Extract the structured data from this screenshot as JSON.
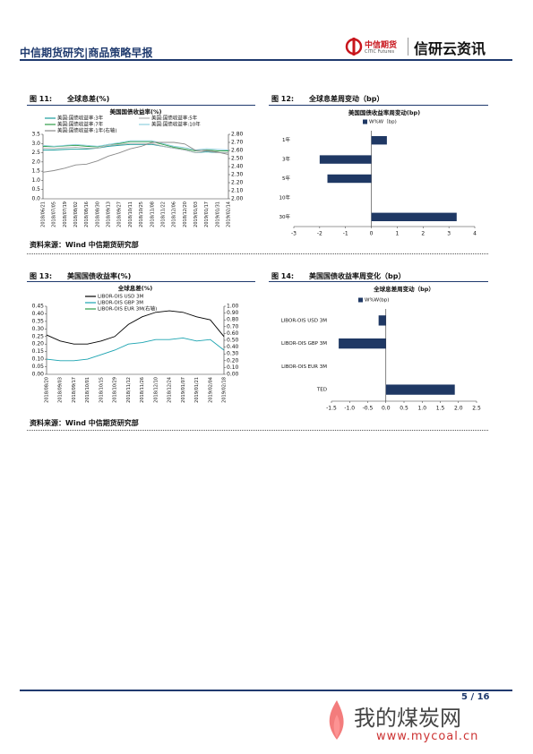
{
  "header": {
    "title": "中信期货研究|商品策略早报",
    "logo_cn": "中信期货",
    "logo_en": "CITIC Futures",
    "brand": "信研云资讯"
  },
  "chart_data": [
    {
      "type": "line",
      "figure_label": "图 11:",
      "caption": "全球息差(%)",
      "title": "美国国债收益率(%)",
      "source": "资料来源：Wind  中信期货研究部",
      "categories": [
        "2018/06/21",
        "2018/07/05",
        "2018/07/19",
        "2018/08/02",
        "2018/08/16",
        "2018/08/30",
        "2018/09/13",
        "2018/09/27",
        "2018/10/11",
        "2018/10/25",
        "2018/11/08",
        "2018/11/22",
        "2018/12/06",
        "2018/12/20",
        "2019/01/03",
        "2019/01/17",
        "2019/01/31",
        "2019/02/14"
      ],
      "series": [
        {
          "name": "美国:国债收益率:3年",
          "color": "#1a9c9c",
          "values": [
            2.65,
            2.65,
            2.68,
            2.7,
            2.7,
            2.75,
            2.85,
            2.9,
            2.95,
            2.95,
            2.95,
            2.85,
            2.75,
            2.65,
            2.5,
            2.55,
            2.5,
            2.5
          ]
        },
        {
          "name": "美国:国债收益率:5年",
          "color": "#b0b0b0",
          "values": [
            2.75,
            2.73,
            2.77,
            2.8,
            2.75,
            2.75,
            2.9,
            2.95,
            3.0,
            3.0,
            3.0,
            2.85,
            2.75,
            2.65,
            2.5,
            2.6,
            2.5,
            2.5
          ]
        },
        {
          "name": "美国:国债收益率:7年",
          "color": "#2e9d48",
          "values": [
            2.85,
            2.83,
            2.87,
            2.9,
            2.85,
            2.82,
            2.95,
            3.0,
            3.1,
            3.1,
            3.1,
            2.95,
            2.8,
            2.7,
            2.6,
            2.65,
            2.6,
            2.6
          ]
        },
        {
          "name": "美国:国债收益率:10年",
          "color": "#8fd0e0",
          "values": [
            2.9,
            2.85,
            2.9,
            2.95,
            2.9,
            2.85,
            2.95,
            3.05,
            3.15,
            3.15,
            3.15,
            3.0,
            2.85,
            2.78,
            2.65,
            2.72,
            2.68,
            2.65
          ]
        },
        {
          "name": "美国:国债收益率:1年(右轴)",
          "color": "#8a8a8a",
          "axis": "y2",
          "values": [
            2.33,
            2.35,
            2.38,
            2.42,
            2.43,
            2.47,
            2.53,
            2.57,
            2.62,
            2.65,
            2.7,
            2.7,
            2.7,
            2.68,
            2.6,
            2.6,
            2.58,
            2.55
          ]
        }
      ],
      "ylim": [
        0,
        3.5
      ],
      "yticks": [
        {
          "value": 0,
          "label": "0.0"
        },
        0.5,
        {
          "value": 1,
          "label": "1.0"
        },
        1.5,
        {
          "value": 2,
          "label": "2.0"
        },
        2.5,
        {
          "value": 3,
          "label": "3.0"
        },
        3.5
      ],
      "y2lim": [
        2.0,
        2.8
      ],
      "y2ticks": [
        {
          "value": 2,
          "label": "2.00"
        },
        {
          "value": 2.1,
          "label": "2.10"
        },
        {
          "value": 2.2,
          "label": "2.20"
        },
        {
          "value": 2.3,
          "label": "2.30"
        },
        {
          "value": 2.4,
          "label": "2.40"
        },
        {
          "value": 2.5,
          "label": "2.50"
        },
        {
          "value": 2.6,
          "label": "2.60"
        },
        {
          "value": 2.7,
          "label": "2.70"
        },
        {
          "value": 2.8,
          "label": "2.80"
        }
      ]
    },
    {
      "type": "barh",
      "figure_label": "图 12:",
      "caption": "全球息差周变动（bp）",
      "title": "美国国债收益率周变动(bp)",
      "categories": [
        "1年",
        "3年",
        "5年",
        "10年",
        "30年"
      ],
      "series": [
        {
          "name": "W%W（bp)",
          "color": "#1f3864",
          "values": [
            0.6,
            -2.0,
            -1.7,
            0,
            3.3
          ]
        }
      ],
      "xlim": [
        -3,
        4
      ],
      "xticks": [
        -3,
        -2,
        -1,
        0,
        1,
        2,
        3,
        4
      ]
    },
    {
      "type": "line",
      "figure_label": "图 13:",
      "caption": "美国国债收益率(%)",
      "title": "全球息差(%)",
      "source": "资料来源：Wind  中信期货研究部",
      "categories": [
        "2018/08/20",
        "2018/09/03",
        "2018/09/17",
        "2018/10/01",
        "2018/10/15",
        "2018/10/29",
        "2018/11/12",
        "2018/11/26",
        "2018/12/10",
        "2018/12/24",
        "2019/01/07",
        "2019/01/21",
        "2019/02/04",
        "2019/02/18"
      ],
      "series": [
        {
          "name": "LIBOR-OIS USD 3M",
          "color": "#000000",
          "values": [
            0.26,
            0.22,
            0.2,
            0.2,
            0.22,
            0.25,
            0.33,
            0.38,
            0.41,
            0.42,
            0.41,
            0.38,
            0.36,
            0.25
          ]
        },
        {
          "name": "LIBOR-OIS GBP 3M",
          "color": "#1aa3b0",
          "values": [
            0.1,
            0.09,
            0.09,
            0.1,
            0.13,
            0.16,
            0.2,
            0.21,
            0.23,
            0.23,
            0.24,
            0.22,
            0.23,
            0.16
          ]
        },
        {
          "name": "LIBOR-OIS EUR 3M(右轴)",
          "color": "#2e9d48",
          "axis": "y2",
          "values": [
            null,
            null,
            null,
            null,
            null,
            null,
            null,
            null,
            null,
            null,
            null,
            null,
            null,
            null
          ]
        }
      ],
      "ylim": [
        0,
        0.45
      ],
      "yticks": [
        {
          "value": 0,
          "label": "0.00"
        },
        {
          "value": 0.05,
          "label": "0.05"
        },
        {
          "value": 0.1,
          "label": "0.10"
        },
        {
          "value": 0.15,
          "label": "0.15"
        },
        {
          "value": 0.2,
          "label": "0.20"
        },
        {
          "value": 0.25,
          "label": "0.25"
        },
        {
          "value": 0.3,
          "label": "0.30"
        },
        {
          "value": 0.35,
          "label": "0.35"
        },
        {
          "value": 0.4,
          "label": "0.40"
        },
        {
          "value": 0.45,
          "label": "0.45"
        }
      ],
      "y2lim": [
        0,
        1
      ],
      "y2ticks": [
        {
          "value": 0,
          "label": "0.00"
        },
        {
          "value": 0.1,
          "label": "0.10"
        },
        {
          "value": 0.2,
          "label": "0.20"
        },
        {
          "value": 0.3,
          "label": "0.30"
        },
        {
          "value": 0.4,
          "label": "0.40"
        },
        {
          "value": 0.5,
          "label": "0.50"
        },
        {
          "value": 0.6,
          "label": "0.60"
        },
        {
          "value": 0.7,
          "label": "0.70"
        },
        {
          "value": 0.8,
          "label": "0.80"
        },
        {
          "value": 0.9,
          "label": "0.90"
        },
        {
          "value": 1,
          "label": "1.00"
        }
      ]
    },
    {
      "type": "barh",
      "figure_label": "图 14:",
      "caption": "美国国债收益率周变化（bp）",
      "title": "全球息差周变动（bp）",
      "categories": [
        "LIBOR-OIS USD 3M",
        "LIBOR-OIS GBP 3M",
        "LIBOR-OIS EUR 3M",
        "TED"
      ],
      "series": [
        {
          "name": "W%W(bp)",
          "color": "#1f3864",
          "values": [
            -0.2,
            -1.3,
            0,
            1.9
          ]
        }
      ],
      "xlim": [
        -1.5,
        2.5
      ],
      "xticks": [
        -1.5,
        {
          "value": -1,
          "label": "-1.0"
        },
        -0.5,
        {
          "value": 0,
          "label": "0.0"
        },
        0.5,
        {
          "value": 1,
          "label": "1.0"
        },
        1.5,
        {
          "value": 2,
          "label": "2.0"
        },
        2.5
      ]
    }
  ],
  "footer": {
    "page": "5 / 16"
  },
  "watermark": {
    "cn": "我的煤炭网",
    "url": "www.mycoal.cn"
  }
}
